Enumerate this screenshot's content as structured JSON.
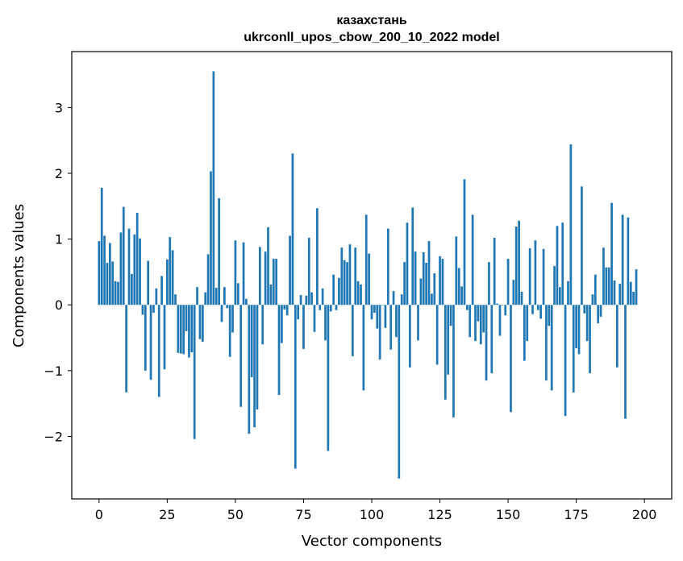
{
  "chart_data": {
    "type": "bar",
    "title": "казахстань",
    "subtitle": "ukrconll_upos_cbow_200_10_2022 model",
    "xlabel": "Vector components",
    "ylabel": "Components values",
    "xlim": [
      -10,
      210
    ],
    "ylim": [
      -2.95,
      3.85
    ],
    "xticks": [
      0,
      25,
      50,
      75,
      100,
      125,
      150,
      175,
      200
    ],
    "xtick_labels": [
      "0",
      "25",
      "50",
      "75",
      "100",
      "125",
      "150",
      "175",
      "200"
    ],
    "yticks": [
      -2,
      -1,
      0,
      1,
      2,
      3
    ],
    "ytick_labels": [
      "−2",
      "−1",
      "0",
      "1",
      "2",
      "3"
    ],
    "bar_color": "#1f77b4",
    "values": [
      0.97,
      1.78,
      1.05,
      0.64,
      0.94,
      0.66,
      0.36,
      0.35,
      1.1,
      1.49,
      -1.33,
      1.16,
      0.47,
      1.07,
      1.4,
      1.01,
      -0.15,
      -1.0,
      0.67,
      -1.14,
      -0.12,
      0.25,
      -1.4,
      0.44,
      -0.98,
      0.69,
      1.03,
      0.83,
      0.16,
      -0.73,
      -0.74,
      -0.75,
      -0.4,
      -0.8,
      -0.72,
      -2.04,
      0.27,
      -0.52,
      -0.56,
      0.19,
      0.77,
      2.03,
      3.55,
      0.26,
      1.62,
      -0.26,
      0.27,
      -0.05,
      -0.79,
      -0.42,
      0.98,
      0.33,
      -1.55,
      0.95,
      0.09,
      -1.96,
      -1.1,
      -1.86,
      -1.59,
      0.88,
      -0.6,
      0.81,
      1.18,
      0.31,
      0.7,
      0.7,
      -1.37,
      -0.58,
      -0.07,
      -0.16,
      1.05,
      2.3,
      -2.49,
      -0.22,
      0.15,
      -0.67,
      0.14,
      1.02,
      0.19,
      -0.41,
      1.47,
      -0.08,
      0.25,
      -0.54,
      -2.22,
      -0.1,
      0.46,
      -0.08,
      0.41,
      0.87,
      0.68,
      0.65,
      0.92,
      -0.78,
      0.87,
      0.36,
      0.31,
      -1.3,
      1.37,
      0.78,
      -0.22,
      -0.12,
      -0.36,
      -0.83,
      0.0,
      -0.35,
      1.16,
      -0.68,
      0.21,
      -0.49,
      -2.64,
      0.16,
      0.65,
      1.25,
      -0.95,
      1.48,
      0.81,
      -0.54,
      0.4,
      0.8,
      0.64,
      0.97,
      0.17,
      0.48,
      -0.91,
      0.74,
      0.7,
      -1.44,
      -1.06,
      -0.32,
      -1.71,
      1.04,
      0.56,
      0.28,
      1.91,
      -0.08,
      -0.49,
      1.37,
      -0.55,
      -0.25,
      -0.6,
      -0.42,
      -1.15,
      0.65,
      -1.04,
      1.02,
      0.02,
      -0.47,
      0.0,
      -0.16,
      0.7,
      -1.63,
      0.38,
      1.19,
      1.28,
      0.2,
      -0.85,
      -0.55,
      0.86,
      -0.14,
      0.98,
      -0.08,
      -0.21,
      0.85,
      -1.15,
      -0.32,
      -1.3,
      0.59,
      1.2,
      0.27,
      1.25,
      -1.69,
      0.36,
      2.44,
      -1.33,
      -0.66,
      -0.75,
      1.8,
      -0.13,
      -0.55,
      -1.04,
      0.16,
      0.46,
      -0.28,
      -0.18,
      0.87,
      0.57,
      0.57,
      1.55,
      0.37,
      -0.95,
      0.32,
      1.37,
      -1.73,
      1.33,
      0.35,
      0.2,
      0.54
    ]
  }
}
